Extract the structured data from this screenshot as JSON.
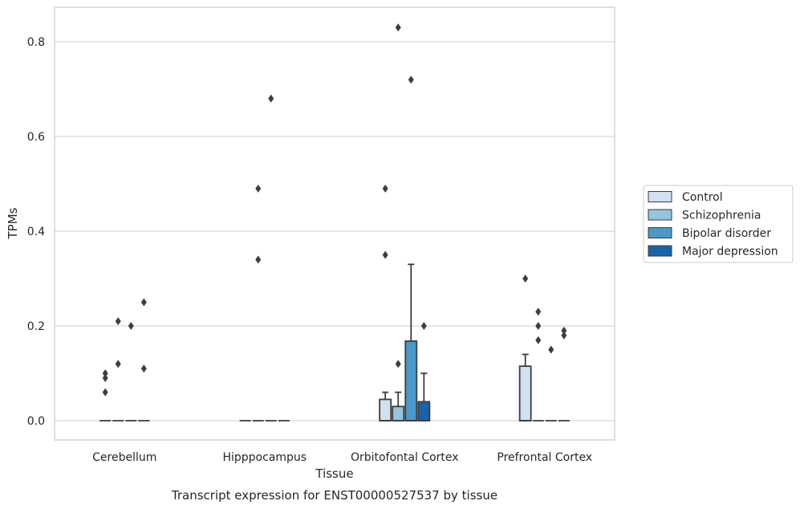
{
  "chart_data": {
    "type": "box",
    "title": "",
    "caption": "Transcript expression for ENST00000527537 by tissue",
    "xlabel": "Tissue",
    "ylabel": "TPMs",
    "ylim": [
      -0.04,
      0.87
    ],
    "yticks": [
      0.0,
      0.2,
      0.4,
      0.6,
      0.8
    ],
    "ytick_labels": [
      "0.0",
      "0.2",
      "0.4",
      "0.6",
      "0.8"
    ],
    "grid": "horizontal",
    "legend_position": "right",
    "categories": [
      "Cerebellum",
      "Hipppocampus",
      "Orbitofontal Cortex",
      "Prefrontal Cortex"
    ],
    "series": [
      {
        "name": "Control",
        "color": "#d0e1f2",
        "boxes": [
          {
            "q1": 0,
            "median": 0,
            "q3": 0,
            "whisker_low": 0,
            "whisker_high": 0,
            "outliers": [
              0.06,
              0.09,
              0.1
            ]
          },
          {
            "q1": 0,
            "median": 0,
            "q3": 0,
            "whisker_low": 0,
            "whisker_high": 0,
            "outliers": []
          },
          {
            "q1": 0,
            "median": 0,
            "q3": 0.045,
            "whisker_low": 0,
            "whisker_high": 0.06,
            "outliers": [
              0.35,
              0.49
            ]
          },
          {
            "q1": 0,
            "median": 0,
            "q3": 0.115,
            "whisker_low": 0,
            "whisker_high": 0.14,
            "outliers": [
              0.3
            ]
          }
        ]
      },
      {
        "name": "Schizophrenia",
        "color": "#94c4df",
        "boxes": [
          {
            "q1": 0,
            "median": 0,
            "q3": 0,
            "whisker_low": 0,
            "whisker_high": 0,
            "outliers": [
              0.12,
              0.21
            ]
          },
          {
            "q1": 0,
            "median": 0,
            "q3": 0,
            "whisker_low": 0,
            "whisker_high": 0,
            "outliers": [
              0.34,
              0.49
            ]
          },
          {
            "q1": 0,
            "median": 0,
            "q3": 0.03,
            "whisker_low": 0,
            "whisker_high": 0.06,
            "outliers": [
              0.12,
              0.83
            ]
          },
          {
            "q1": 0,
            "median": 0,
            "q3": 0,
            "whisker_low": 0,
            "whisker_high": 0,
            "outliers": [
              0.17,
              0.2,
              0.23
            ]
          }
        ]
      },
      {
        "name": "Bipolar disorder",
        "color": "#4a98c9",
        "boxes": [
          {
            "q1": 0,
            "median": 0,
            "q3": 0,
            "whisker_low": 0,
            "whisker_high": 0,
            "outliers": [
              0.2
            ]
          },
          {
            "q1": 0,
            "median": 0,
            "q3": 0,
            "whisker_low": 0,
            "whisker_high": 0,
            "outliers": [
              0.68
            ]
          },
          {
            "q1": 0,
            "median": 0,
            "q3": 0.168,
            "whisker_low": 0,
            "whisker_high": 0.33,
            "outliers": [
              0.72
            ]
          },
          {
            "q1": 0,
            "median": 0,
            "q3": 0,
            "whisker_low": 0,
            "whisker_high": 0,
            "outliers": [
              0.15
            ]
          }
        ]
      },
      {
        "name": "Major depression",
        "color": "#1764ab",
        "boxes": [
          {
            "q1": 0,
            "median": 0,
            "q3": 0,
            "whisker_low": 0,
            "whisker_high": 0,
            "outliers": [
              0.11,
              0.25
            ]
          },
          {
            "q1": 0,
            "median": 0,
            "q3": 0,
            "whisker_low": 0,
            "whisker_high": 0,
            "outliers": []
          },
          {
            "q1": 0,
            "median": 0,
            "q3": 0.04,
            "whisker_low": 0,
            "whisker_high": 0.1,
            "outliers": [
              0.2
            ]
          },
          {
            "q1": 0,
            "median": 0,
            "q3": 0,
            "whisker_low": 0,
            "whisker_high": 0,
            "outliers": [
              0.18,
              0.19
            ]
          }
        ]
      }
    ]
  }
}
